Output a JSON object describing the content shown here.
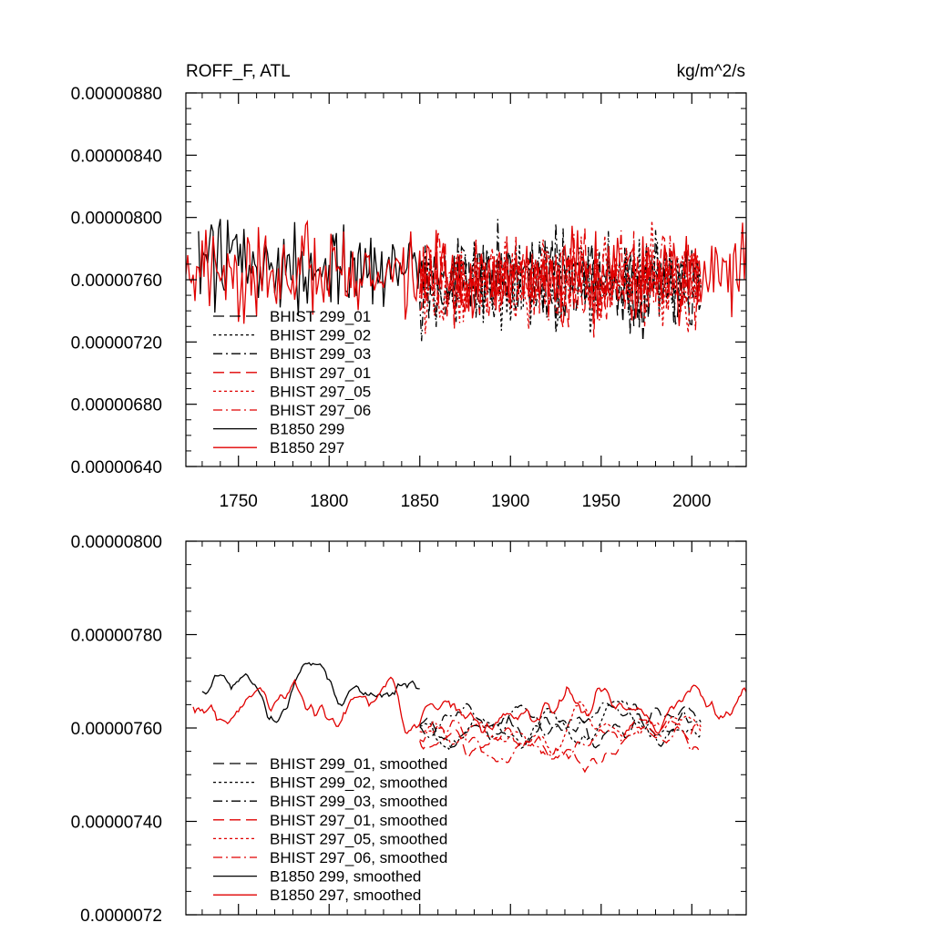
{
  "chart_data": [
    {
      "type": "line",
      "title": "ROFF_F, ATL",
      "units": "kg/m^2/s",
      "xlabel": "",
      "ylabel": "",
      "xlim": [
        1721,
        2030
      ],
      "ylim": [
        6.4e-06,
        8.8e-06
      ],
      "xticks": [
        "1750",
        "1800",
        "1850",
        "1900",
        "1950",
        "2000"
      ],
      "yticks": [
        "0.00000640",
        "0.00000680",
        "0.00000720",
        "0.00000760",
        "0.00000800",
        "0.00000840",
        "0.00000880"
      ],
      "legend_placement": "bottom-left",
      "series": [
        {
          "name": "BHIST 299_01",
          "color": "#000000",
          "dash": "long-dash",
          "x_start": 1850,
          "x_end": 2005,
          "mean": 7.6e-06,
          "amplitude": 3e-07,
          "seed": 11
        },
        {
          "name": "BHIST 299_02",
          "color": "#000000",
          "dash": "dot",
          "x_start": 1850,
          "x_end": 2005,
          "mean": 7.6e-06,
          "amplitude": 3e-07,
          "seed": 12
        },
        {
          "name": "BHIST 299_03",
          "color": "#000000",
          "dash": "dash-dot",
          "x_start": 1850,
          "x_end": 2005,
          "mean": 7.6e-06,
          "amplitude": 3e-07,
          "seed": 13
        },
        {
          "name": "BHIST 297_01",
          "color": "#e00000",
          "dash": "long-dash",
          "x_start": 1850,
          "x_end": 2005,
          "mean": 7.6e-06,
          "amplitude": 3e-07,
          "seed": 21
        },
        {
          "name": "BHIST 297_05",
          "color": "#e00000",
          "dash": "dot",
          "x_start": 1850,
          "x_end": 2005,
          "mean": 7.6e-06,
          "amplitude": 3e-07,
          "seed": 22
        },
        {
          "name": "BHIST 297_06",
          "color": "#e00000",
          "dash": "dash-dot",
          "x_start": 1850,
          "x_end": 2005,
          "mean": 7.6e-06,
          "amplitude": 3e-07,
          "seed": 23
        },
        {
          "name": "B1850 299",
          "color": "#000000",
          "dash": "solid",
          "x_start": 1728,
          "x_end": 1850,
          "mean": 7.7e-06,
          "amplitude": 3e-07,
          "seed": 31
        },
        {
          "name": "B1850 297",
          "color": "#e00000",
          "dash": "solid",
          "x_start": 1721,
          "x_end": 2030,
          "mean": 7.65e-06,
          "amplitude": 3e-07,
          "seed": 32
        }
      ]
    },
    {
      "type": "line",
      "title": "",
      "xlabel": "",
      "ylabel": "",
      "xlim": [
        1721,
        2030
      ],
      "ylim": [
        7.2e-06,
        8e-06
      ],
      "xticks": [],
      "yticks": [
        "0.0000072",
        "0.00000740",
        "0.00000760",
        "0.00000780",
        "0.00000800"
      ],
      "legend_placement": "bottom-left",
      "series": [
        {
          "name": "BHIST 299_01, smoothed",
          "color": "#000000",
          "dash": "long-dash",
          "x_start": 1850,
          "x_end": 2005,
          "mean": 7.6e-06,
          "amplitude": 1e-07,
          "seed": 41
        },
        {
          "name": "BHIST 299_02, smoothed",
          "color": "#000000",
          "dash": "dot",
          "x_start": 1850,
          "x_end": 2005,
          "mean": 7.6e-06,
          "amplitude": 1e-07,
          "seed": 42
        },
        {
          "name": "BHIST 299_03, smoothed",
          "color": "#000000",
          "dash": "dash-dot",
          "x_start": 1850,
          "x_end": 2005,
          "mean": 7.6e-06,
          "amplitude": 1e-07,
          "seed": 43
        },
        {
          "name": "BHIST 297_01, smoothed",
          "color": "#e00000",
          "dash": "long-dash",
          "x_start": 1850,
          "x_end": 2005,
          "mean": 7.58e-06,
          "amplitude": 1e-07,
          "seed": 51
        },
        {
          "name": "BHIST 297_05, smoothed",
          "color": "#e00000",
          "dash": "dot",
          "x_start": 1850,
          "x_end": 2005,
          "mean": 7.6e-06,
          "amplitude": 1e-07,
          "seed": 52
        },
        {
          "name": "BHIST 297_06, smoothed",
          "color": "#e00000",
          "dash": "dash-dot",
          "x_start": 1850,
          "x_end": 2005,
          "mean": 7.58e-06,
          "amplitude": 1e-07,
          "seed": 53
        },
        {
          "name": "B1850 299, smoothed",
          "color": "#000000",
          "dash": "solid",
          "x_start": 1730,
          "x_end": 1850,
          "mean": 7.67e-06,
          "amplitude": 1.4e-07,
          "seed": 61
        },
        {
          "name": "B1850 297, smoothed",
          "color": "#e00000",
          "dash": "solid",
          "x_start": 1725,
          "x_end": 2030,
          "mean": 7.65e-06,
          "amplitude": 1.4e-07,
          "seed": 62
        }
      ]
    }
  ]
}
